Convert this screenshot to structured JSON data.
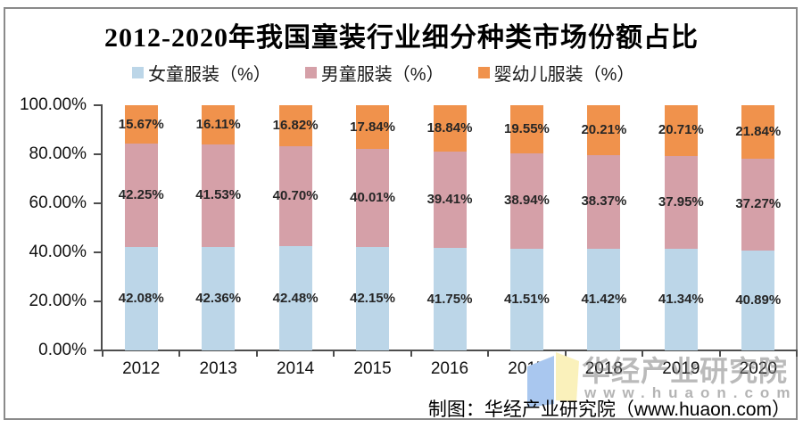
{
  "title": "2012-2020年我国童装行业细分种类市场份额占比",
  "chart_data": {
    "type": "bar",
    "stacked": true,
    "title": "2012-2020年我国童装行业细分种类市场份额占比",
    "categories": [
      "2012",
      "2013",
      "2014",
      "2015",
      "2016",
      "2017",
      "2018",
      "2019",
      "2020"
    ],
    "series": [
      {
        "id": "girls-apparel",
        "name": "女童服装（%）",
        "color": "#BCD6E8",
        "values": [
          42.08,
          42.36,
          42.48,
          42.15,
          41.75,
          41.51,
          41.42,
          41.34,
          40.89
        ]
      },
      {
        "id": "boys-apparel",
        "name": "男童服装（%）",
        "color": "#D5A0A8",
        "values": [
          42.25,
          41.53,
          40.7,
          40.01,
          39.41,
          38.94,
          38.37,
          37.95,
          37.27
        ]
      },
      {
        "id": "infant-apparel",
        "name": "婴幼儿服装（%）",
        "color": "#F0924C",
        "values": [
          15.67,
          16.11,
          16.82,
          17.84,
          18.84,
          19.55,
          20.21,
          20.71,
          21.84
        ]
      }
    ],
    "ylim": [
      0,
      100
    ],
    "ytick_values": [
      100,
      80,
      60,
      40,
      20,
      0
    ],
    "ytick_labels": [
      "100.00%",
      "80.00%",
      "60.00%",
      "40.00%",
      "20.00%",
      "0.00%"
    ],
    "data_label_format": "{value}%",
    "grid": false,
    "legend_position": "top",
    "plot_background": "#ffffff"
  },
  "colors": {
    "girls": "#BCD6E8",
    "boys": "#D5A0A8",
    "infants": "#F0924C",
    "axis": "#4d4d4d",
    "frame_border": "#8a8a8a"
  },
  "watermark": {
    "brand": "华经产业研究院",
    "site": "www.huaon.com",
    "icon": "open-book-icon",
    "icon_colors": {
      "left_page": "#A9C7EF",
      "right_page": "#FAF1BB"
    }
  },
  "footer": {
    "credit": "制图：华经产业研究院（www.huaon.com）"
  }
}
